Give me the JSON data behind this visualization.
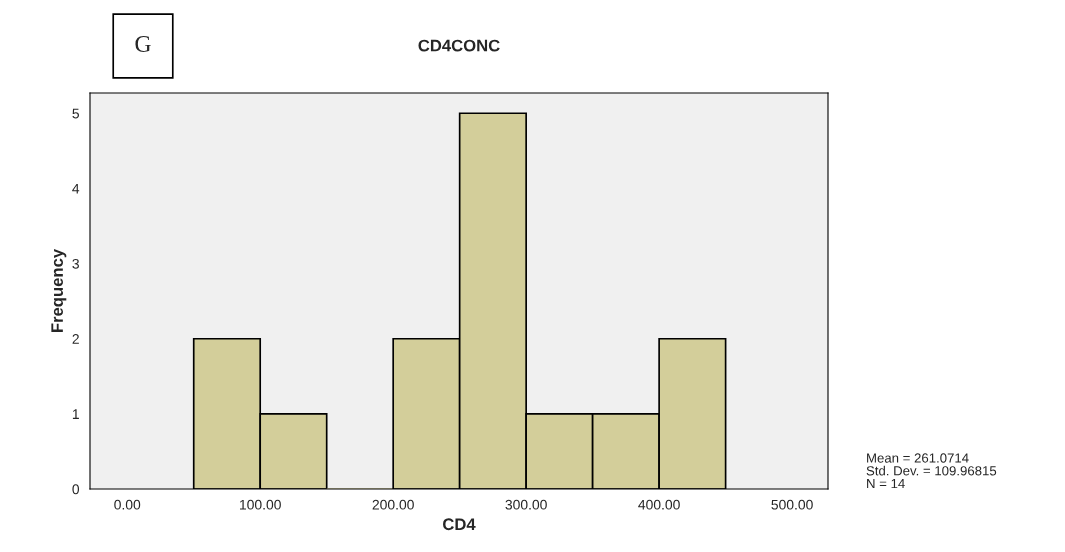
{
  "chart_data": {
    "type": "histogram",
    "title": "CD4CONC",
    "xlabel": "CD4",
    "ylabel": "Frequency",
    "bins": [
      50,
      100,
      150,
      200,
      250,
      300,
      350,
      400,
      450
    ],
    "values": [
      2,
      1,
      0,
      2,
      5,
      1,
      1,
      2
    ],
    "color": "#d3ce9a",
    "xlim": [
      -28,
      527
    ],
    "ylim": [
      0,
      5.27
    ],
    "xticks": [
      {
        "value": 0,
        "label": "0.00"
      },
      {
        "value": 100,
        "label": "100.00"
      },
      {
        "value": 200,
        "label": "200.00"
      },
      {
        "value": 300,
        "label": "300.00"
      },
      {
        "value": 400,
        "label": "400.00"
      },
      {
        "value": 500,
        "label": "500.00"
      }
    ],
    "yticks": [
      0,
      1,
      2,
      3,
      4,
      5
    ],
    "grid": false,
    "annotations": [
      "G",
      "Mean = 261.0714\nStd. Dev. = 109.96815\nN = 14"
    ]
  }
}
